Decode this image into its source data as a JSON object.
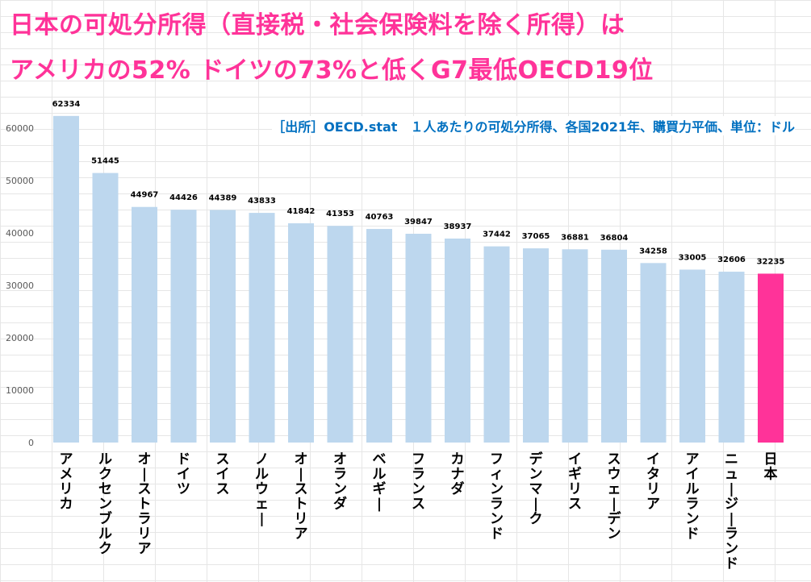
{
  "title": {
    "line1": "日本の可処分所得（直接税・社会保険料を除く所得）は",
    "line2": "アメリカの52% ドイツの73%と低くG7最低OECD19位"
  },
  "source": "［出所］OECD.stat　１人あたりの可処分所得、各国2021年、購買力平価、単位：ドル",
  "colors": {
    "bar": "#bdd7ee",
    "highlight": "#ff3399",
    "title": "#ff3399",
    "source": "#0070c0"
  },
  "chart_data": {
    "type": "bar",
    "categories": [
      "アメリカ",
      "ルクセンブルク",
      "オーストラリア",
      "ドイツ",
      "スイス",
      "ノルウェー",
      "オーストリア",
      "オランダ",
      "ベルギー",
      "フランス",
      "カナダ",
      "フィンランド",
      "デンマーク",
      "イギリス",
      "スウェーデン",
      "イタリア",
      "アイルランド",
      "ニュージーランド",
      "日本"
    ],
    "values": [
      62334,
      51445,
      44967,
      44426,
      44389,
      43833,
      41842,
      41353,
      40763,
      39847,
      38937,
      37442,
      37065,
      36881,
      36804,
      34258,
      33005,
      32606,
      32235
    ],
    "highlight_category": "日本",
    "yticks": [
      0,
      10000,
      20000,
      30000,
      40000,
      50000,
      60000
    ],
    "ylim": [
      0,
      65000
    ],
    "xlabel": "",
    "ylabel": ""
  }
}
